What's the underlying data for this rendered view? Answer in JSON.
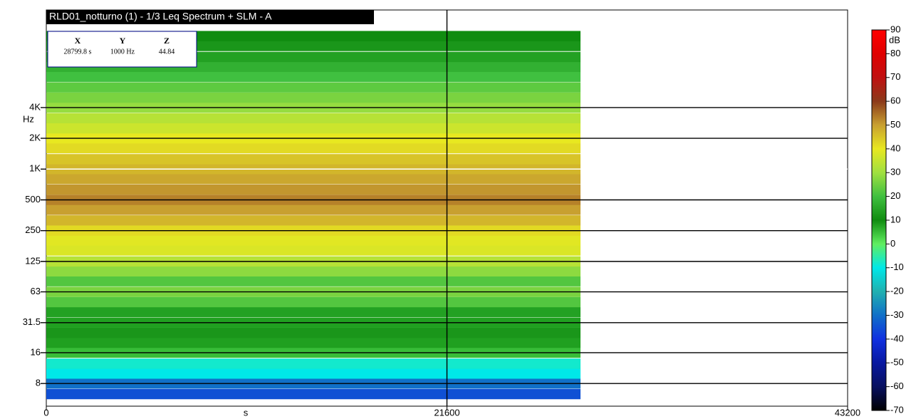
{
  "chart_data": {
    "type": "spectrogram",
    "title": "RLD01_notturno (1) - 1/3 Leq Spectrum + SLM - A",
    "x_label": "s",
    "y_label": "Hz",
    "xlim": [
      0,
      43200
    ],
    "xticks": [
      0,
      21600,
      43200
    ],
    "ylim": [
      4.8,
      36000
    ],
    "log_y": true,
    "yticks": [
      8,
      16,
      31.5,
      63,
      125,
      250,
      500,
      {
        "value": 1000,
        "label": "1K"
      },
      {
        "value": 2000,
        "label": "2K"
      },
      {
        "value": 4000,
        "label": "4K"
      }
    ],
    "duration": 28800,
    "bands": [
      6.3,
      8,
      10,
      12.5,
      16,
      20,
      25,
      31.5,
      40,
      50,
      63,
      80,
      100,
      125,
      160,
      200,
      250,
      315,
      400,
      500,
      630,
      800,
      1000,
      1250,
      1600,
      2000,
      2500,
      3150,
      4000,
      5000,
      6300,
      8000,
      10000,
      12500,
      16000,
      20000
    ],
    "levels": [
      -35,
      -30,
      -10,
      -8,
      5,
      8,
      12,
      8,
      14,
      22,
      26,
      22,
      28,
      33,
      38,
      39,
      42,
      47,
      50,
      53,
      51,
      49,
      47,
      45,
      42,
      40,
      36,
      33,
      29,
      26,
      23,
      20,
      17,
      14,
      12,
      10
    ],
    "z_label": "dB",
    "zticks": [
      90,
      80,
      70,
      60,
      50,
      40,
      30,
      20,
      10,
      0,
      -10,
      -20,
      -30,
      -40,
      -50,
      -60,
      -70
    ],
    "zcolors": [
      "#ff0000",
      "#e00000",
      "#c01010",
      "#8b3a1a",
      "#c8a030",
      "#e8e820",
      "#a0e040",
      "#40c040",
      "#108c10",
      "#60ee60",
      "#00e8e8",
      "#20b0b0",
      "#1070c8",
      "#1030e0",
      "#0818a0",
      "#081060",
      "#000000"
    ],
    "grid": true,
    "cursor": {
      "x_name": "X",
      "y_name": "Y",
      "z_name": "Z",
      "x": {
        "value": 28799.8,
        "label": "28799.8 s"
      },
      "y": {
        "value": 1000,
        "label": "1000 Hz"
      },
      "z": {
        "value": 44.84,
        "label": "44.84"
      }
    }
  }
}
